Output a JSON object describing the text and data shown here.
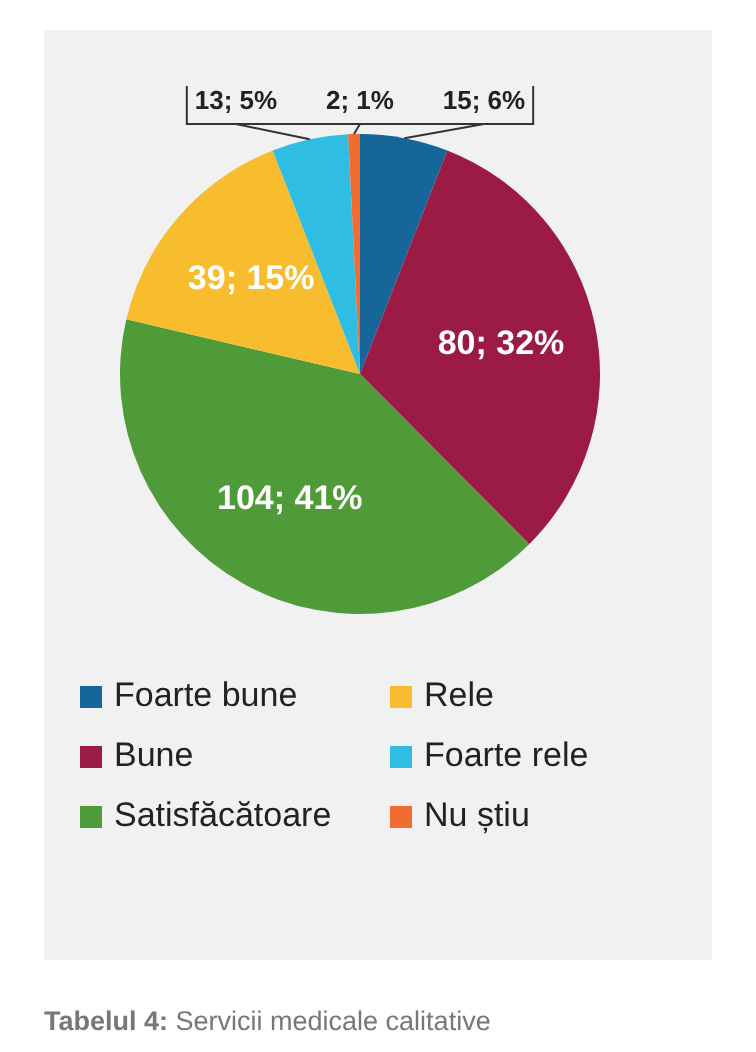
{
  "chart_data": {
    "type": "pie",
    "categories": [
      "Foarte bune",
      "Bune",
      "Satisfăcătoare",
      "Rele",
      "Foarte rele",
      "Nu știu"
    ],
    "values": [
      15,
      80,
      104,
      39,
      13,
      2
    ],
    "value_labels": [
      "15; 6%",
      "80; 32%",
      "104; 41%",
      "39; 15%",
      "13; 5%",
      "2; 1%"
    ],
    "colors": [
      "#17669a",
      "#9c1b44",
      "#4f9b3a",
      "#f8bd2f",
      "#30bde3",
      "#f26b2f"
    ],
    "legend": "bottom",
    "annotations": [
      "Tabelul 4: Servicii medicale calitative"
    ]
  }
}
